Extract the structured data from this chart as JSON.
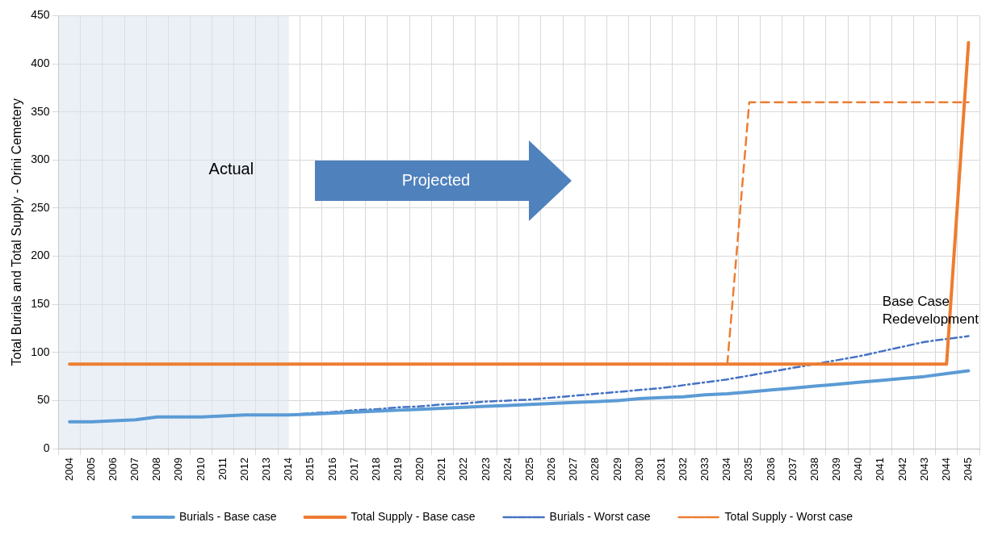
{
  "chart_data": {
    "type": "line",
    "ylabel": "Total Burials and Total Supply - Orini Cemetery",
    "categories": [
      "2004",
      "2005",
      "2006",
      "2007",
      "2008",
      "2009",
      "2010",
      "2011",
      "2012",
      "2013",
      "2014",
      "2015",
      "2016",
      "2017",
      "2018",
      "2019",
      "2020",
      "2021",
      "2022",
      "2023",
      "2024",
      "2025",
      "2026",
      "2027",
      "2028",
      "2029",
      "2030",
      "2031",
      "2032",
      "2033",
      "2034",
      "2035",
      "2036",
      "2037",
      "2038",
      "2039",
      "2040",
      "2041",
      "2042",
      "2043",
      "2044",
      "2045"
    ],
    "series": [
      {
        "name": "Burials - Base case",
        "color": "#5b9bd5",
        "line_style": "solid",
        "values": [
          28,
          28,
          29,
          30,
          33,
          33,
          33,
          34,
          35,
          35,
          35,
          36,
          37,
          38,
          39,
          40,
          41,
          42,
          43,
          44,
          45,
          46,
          47,
          48,
          49,
          50,
          52,
          53,
          54,
          56,
          57,
          59,
          61,
          63,
          65,
          67,
          69,
          71,
          73,
          75,
          78,
          81
        ]
      },
      {
        "name": "Total Supply - Base case",
        "color": "#ed7d31",
        "line_style": "solid",
        "values": [
          88,
          88,
          88,
          88,
          88,
          88,
          88,
          88,
          88,
          88,
          88,
          88,
          88,
          88,
          88,
          88,
          88,
          88,
          88,
          88,
          88,
          88,
          88,
          88,
          88,
          88,
          88,
          88,
          88,
          88,
          88,
          88,
          88,
          88,
          88,
          88,
          88,
          88,
          88,
          88,
          88,
          422
        ]
      },
      {
        "name": "Burials - Worst case",
        "color": "#4472c4",
        "line_style": "dashdot",
        "values": [
          28,
          28,
          29,
          30,
          33,
          33,
          33,
          34,
          35,
          35,
          35,
          37,
          38,
          40,
          41,
          43,
          44,
          46,
          47,
          49,
          50,
          51,
          53,
          55,
          57,
          59,
          61,
          63,
          66,
          69,
          72,
          76,
          80,
          84,
          88,
          92,
          96,
          101,
          106,
          111,
          114,
          117
        ]
      },
      {
        "name": "Total Supply - Worst case",
        "color": "#ed7d31",
        "line_style": "dashed",
        "values": [
          null,
          null,
          null,
          null,
          null,
          null,
          null,
          null,
          null,
          null,
          null,
          null,
          null,
          null,
          null,
          null,
          null,
          null,
          null,
          null,
          null,
          null,
          null,
          null,
          null,
          null,
          null,
          null,
          null,
          null,
          88,
          360,
          360,
          360,
          360,
          360,
          360,
          360,
          360,
          360,
          360,
          360
        ]
      }
    ],
    "ylim": [
      0,
      450
    ],
    "yticks": [
      0,
      50,
      100,
      150,
      200,
      250,
      300,
      350,
      400,
      450
    ],
    "grid": true,
    "legend": "bottom",
    "marker": "none",
    "bands": [
      {
        "axis": "x",
        "from": "2004",
        "to": "2014",
        "label": "Actual",
        "color": "#dbe3f1"
      }
    ],
    "annotations": [
      "Projected",
      "Base Case\nRedevelopment"
    ]
  }
}
